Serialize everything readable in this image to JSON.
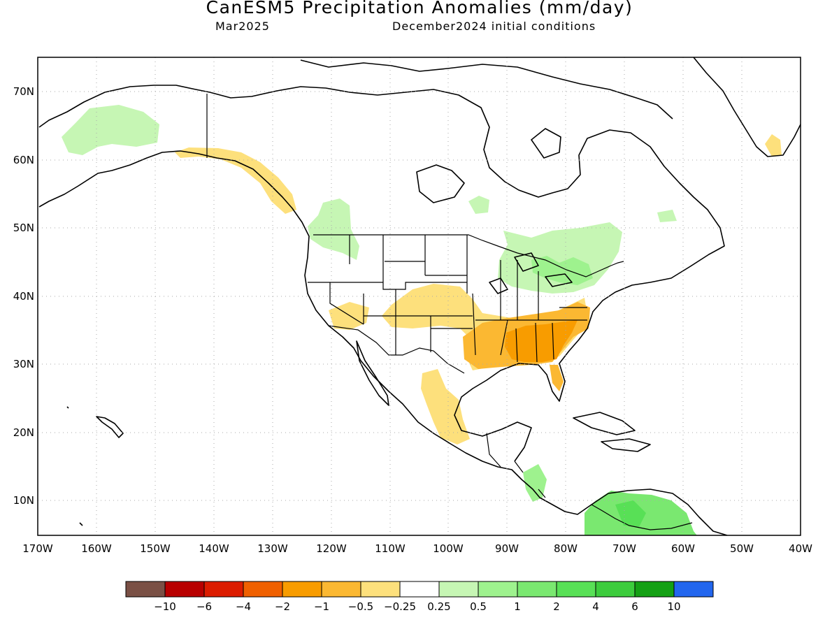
{
  "title": "CanESM5 Precipitation Anomalies (mm/day)",
  "subtitle_left": "Mar2025",
  "subtitle_right": "December2024 initial conditions",
  "lat_labels": [
    "70N",
    "60N",
    "50N",
    "40N",
    "30N",
    "20N",
    "10N"
  ],
  "lon_labels": [
    "170W",
    "160W",
    "150W",
    "140W",
    "130W",
    "120W",
    "110W",
    "100W",
    "90W",
    "80W",
    "70W",
    "60W",
    "50W",
    "40W"
  ],
  "colorbar": {
    "colors": [
      "#7a5045",
      "#b80000",
      "#dc1c00",
      "#f06000",
      "#f89c00",
      "#fbb832",
      "#fde07c",
      "#ffffff",
      "#c6f6b4",
      "#9ef28e",
      "#7ae870",
      "#58e056",
      "#3ccc3c",
      "#14a014",
      "#2266ee"
    ],
    "labels": [
      "-10",
      "-6",
      "-4",
      "-2",
      "-1",
      "-0.5",
      "-0.25",
      "0.25",
      "0.5",
      "1",
      "2",
      "4",
      "6",
      "10"
    ]
  }
}
